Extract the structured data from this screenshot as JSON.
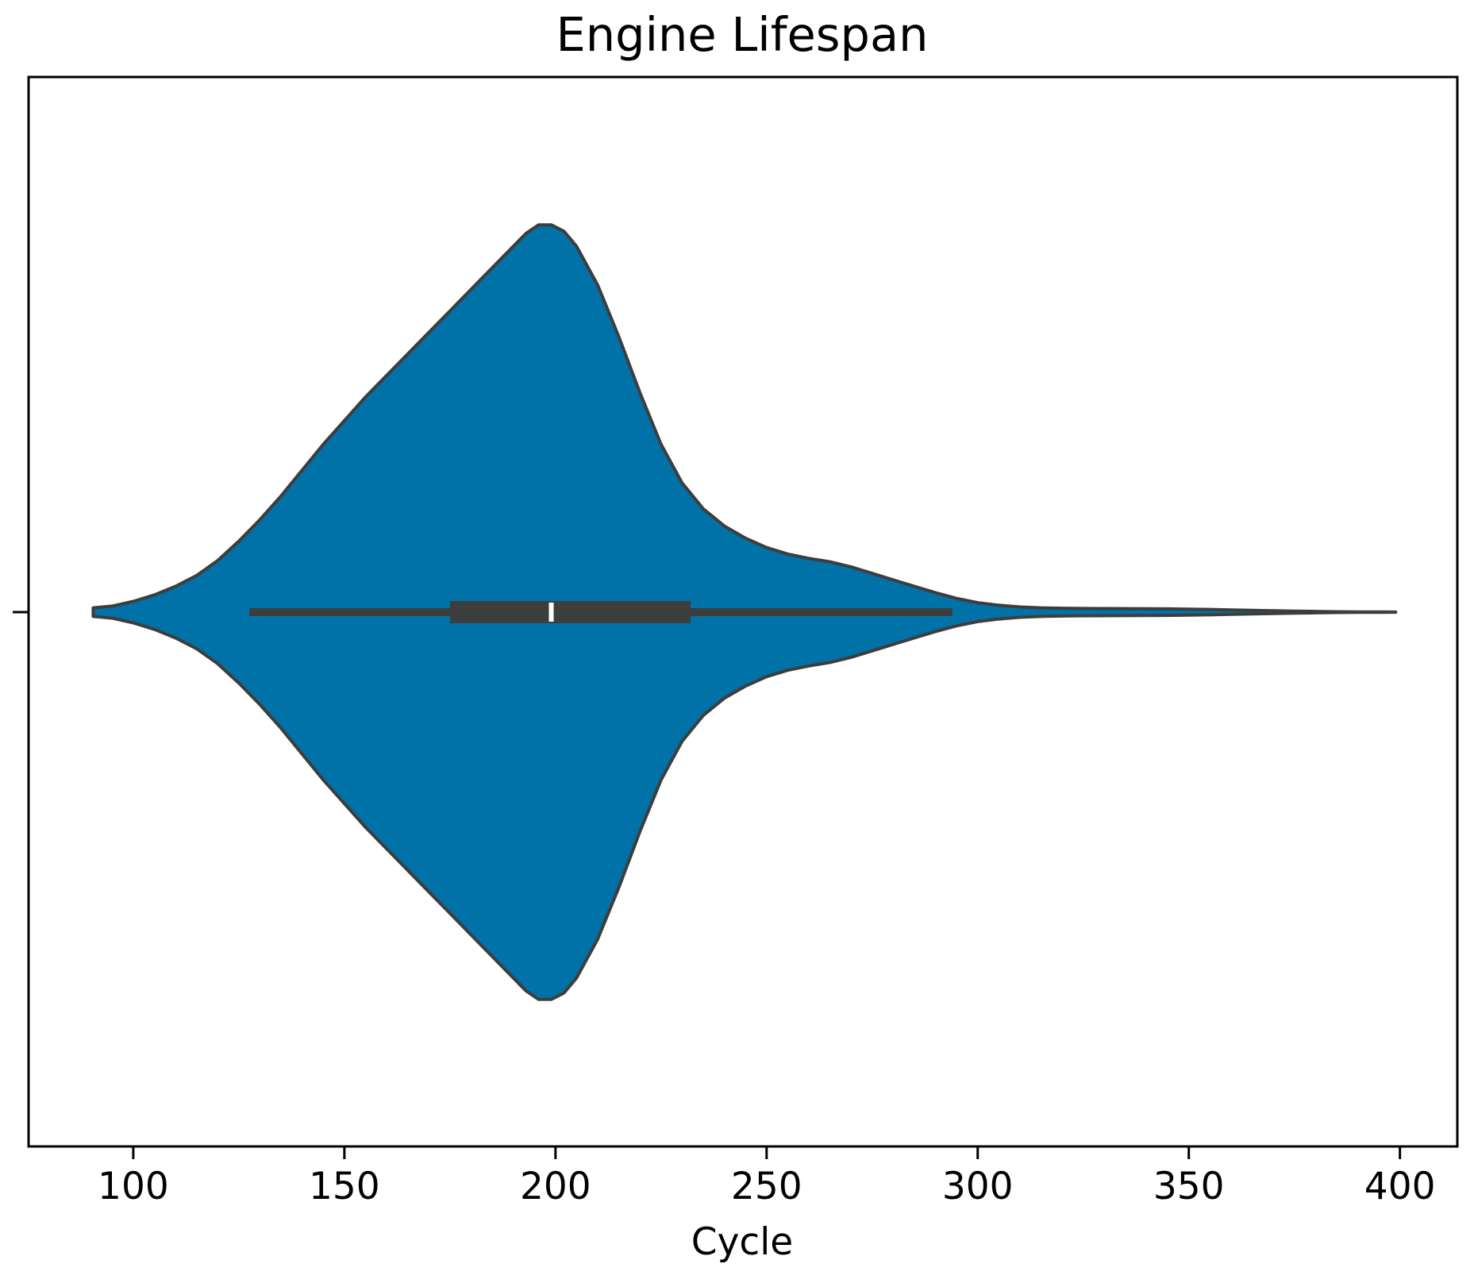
{
  "chart_data": {
    "type": "violin",
    "title": "Engine Lifespan",
    "xlabel": "Cycle",
    "ylabel": "",
    "orientation": "horizontal",
    "xlim": [
      75.2,
      413.6
    ],
    "xticks": [
      100,
      150,
      200,
      250,
      300,
      350,
      400
    ],
    "xtick_labels": [
      "100",
      "150",
      "200",
      "250",
      "300",
      "350",
      "400"
    ],
    "grid": false,
    "legend": "none",
    "colors": {
      "violin_fill": "#0072A7",
      "violin_edge": "#3d3d3d",
      "box": "#3d3d3d",
      "median_marker": "#ffffff",
      "axes": "#000000"
    },
    "density": {
      "x": [
        90.5,
        95,
        100,
        105,
        110,
        115,
        120,
        125,
        130,
        135,
        140,
        145,
        150,
        155,
        160,
        165,
        170,
        175,
        180,
        185,
        190,
        193,
        196,
        199,
        202,
        205,
        210,
        215,
        220,
        225,
        230,
        235,
        240,
        245,
        250,
        255,
        260,
        265,
        270,
        275,
        280,
        285,
        290,
        295,
        300,
        305,
        310,
        315,
        320,
        325,
        330,
        335,
        340,
        345,
        350,
        355,
        360,
        365,
        370,
        375,
        380,
        385,
        390,
        395,
        399
      ],
      "width": [
        0.01,
        0.014,
        0.025,
        0.04,
        0.06,
        0.085,
        0.12,
        0.165,
        0.215,
        0.27,
        0.33,
        0.39,
        0.445,
        0.5,
        0.55,
        0.6,
        0.65,
        0.7,
        0.75,
        0.8,
        0.85,
        0.88,
        0.9,
        0.9,
        0.885,
        0.85,
        0.76,
        0.64,
        0.51,
        0.39,
        0.3,
        0.24,
        0.2,
        0.172,
        0.15,
        0.135,
        0.125,
        0.117,
        0.105,
        0.09,
        0.075,
        0.06,
        0.045,
        0.032,
        0.022,
        0.016,
        0.012,
        0.01,
        0.009,
        0.0085,
        0.0083,
        0.0082,
        0.008,
        0.0075,
        0.007,
        0.0062,
        0.0052,
        0.0042,
        0.0033,
        0.0024,
        0.0016,
        0.001,
        0.0006,
        0.0003,
        0.0001
      ]
    },
    "box": {
      "whisker_low": 127.5,
      "q1": 175,
      "median": 199,
      "q3": 232,
      "whisker_high": 294
    }
  }
}
